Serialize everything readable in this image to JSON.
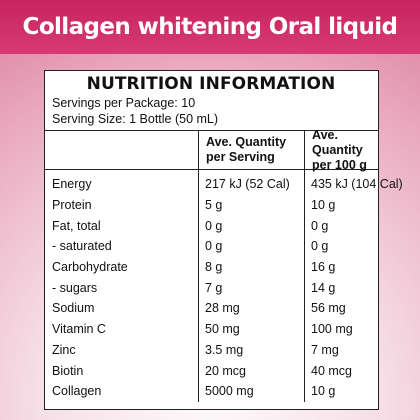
{
  "header": {
    "title": "Collagen whitening Oral liquid"
  },
  "panel": {
    "heading": "NUTRITION INFORMATION",
    "servings_per_package": "Servings per Package: 10",
    "serving_size": "Serving Size: 1 Bottle (50 mL)",
    "columns": [
      "",
      "Ave. Quantity per Serving",
      "Ave. Quantity per 100 g"
    ],
    "column_lines": [
      [
        "Ave. Quantity",
        "per Serving"
      ],
      [
        "Ave. Quantity",
        "per 100 g"
      ]
    ],
    "rows": [
      {
        "name": "Energy",
        "per_serving": "217 kJ (52 Cal)",
        "per_100g": "435 kJ (104 Cal)"
      },
      {
        "name": "Protein",
        "per_serving": "5 g",
        "per_100g": "10 g"
      },
      {
        "name": "Fat, total",
        "per_serving": "0 g",
        "per_100g": "0 g"
      },
      {
        "name": "- saturated",
        "per_serving": "0 g",
        "per_100g": "0 g"
      },
      {
        "name": "Carbohydrate",
        "per_serving": "8 g",
        "per_100g": "16 g"
      },
      {
        "name": "- sugars",
        "per_serving": "7 g",
        "per_100g": "14 g"
      },
      {
        "name": "Sodium",
        "per_serving": "28 mg",
        "per_100g": "56 mg"
      },
      {
        "name": "Vitamin C",
        "per_serving": "50 mg",
        "per_100g": "100 mg"
      },
      {
        "name": "Zinc",
        "per_serving": "3.5 mg",
        "per_100g": "7 mg"
      },
      {
        "name": "Biotin",
        "per_serving": "20 mcg",
        "per_100g": "40 mcg"
      },
      {
        "name": "Collagen",
        "per_serving": "5000 mg",
        "per_100g": "10 g"
      }
    ]
  },
  "colors": {
    "banner": "#c8245e",
    "border": "#222222",
    "text": "#111111"
  }
}
